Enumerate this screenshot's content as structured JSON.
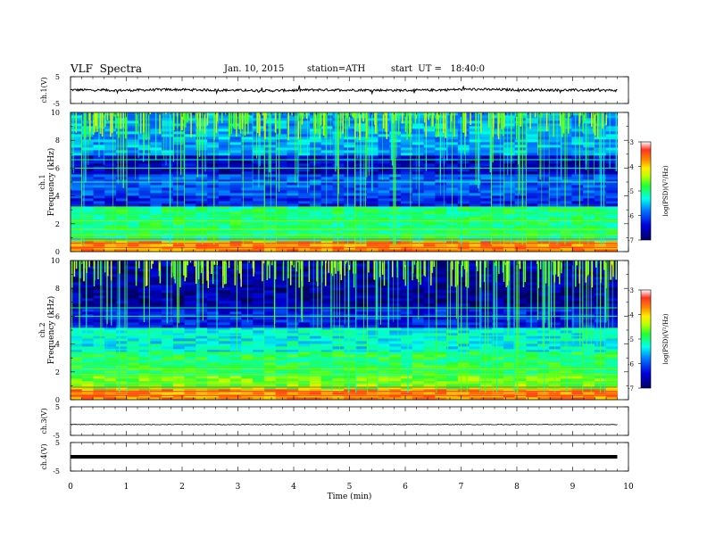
{
  "header": {
    "title": "VLF  Spectra",
    "date": "Jan. 10, 2015",
    "station": "station=ATH",
    "start": "start  UT =   18:40:0"
  },
  "chart_data": [
    {
      "panel": "ch1-waveform",
      "type": "line",
      "ylabel": "ch.1(V)",
      "ylim": [
        -5,
        5
      ],
      "yticks": [
        "5",
        "-5"
      ],
      "series": [
        {
          "values": [
            0.1,
            -0.1,
            0.2,
            0.0,
            -0.2,
            0.1,
            0.0,
            -0.1,
            0.3,
            0.1,
            0.0,
            -0.1
          ]
        }
      ]
    },
    {
      "panel": "ch1-spectrogram",
      "type": "heatmap",
      "ylabel": "ch.1 Frequency (kHz)",
      "ylim": [
        0,
        10
      ],
      "yticks": [
        "0",
        "2",
        "4",
        "6",
        "8",
        "10"
      ],
      "colorbar": {
        "label": "log(PSD)(V²/Hz)",
        "range": [
          -7,
          -3
        ],
        "ticks": [
          "-3",
          "-4",
          "-5",
          "-6",
          "-7"
        ]
      }
    },
    {
      "panel": "ch2-spectrogram",
      "type": "heatmap",
      "ylabel": "ch.2 Frequency (kHz)",
      "ylim": [
        0,
        10
      ],
      "yticks": [
        "0",
        "2",
        "4",
        "6",
        "8",
        "10"
      ],
      "colorbar": {
        "label": "log(PSD)(V²/Hz)",
        "range": [
          -7,
          -3
        ],
        "ticks": [
          "-3",
          "-4",
          "-5",
          "-6",
          "-7"
        ]
      }
    },
    {
      "panel": "ch3-waveform",
      "type": "line",
      "ylabel": "ch.3(V)",
      "ylim": [
        -5,
        5
      ],
      "yticks": [
        "5",
        "-5"
      ],
      "series": [
        {
          "values": [
            -1.2,
            -1.2,
            -1.2,
            -1.2
          ]
        }
      ]
    },
    {
      "panel": "ch4-waveform",
      "type": "line",
      "ylabel": "ch.4(V)",
      "ylim": [
        -5,
        5
      ],
      "yticks": [
        "5",
        "-5"
      ],
      "series": [
        {
          "values": [
            0,
            0,
            0,
            0
          ]
        }
      ]
    }
  ],
  "xaxis": {
    "label": "Time  (min)",
    "xlim": [
      0,
      10
    ],
    "data_end": 9.8,
    "ticks": [
      "0",
      "1",
      "2",
      "3",
      "4",
      "5",
      "6",
      "7",
      "8",
      "9",
      "10"
    ]
  },
  "colors": {
    "colormap": [
      "#000066",
      "#0000cc",
      "#0044ff",
      "#00aaff",
      "#00ffcc",
      "#22ff44",
      "#aaff00",
      "#ffff00",
      "#ff9900",
      "#ff2200",
      "#ffffff"
    ]
  }
}
